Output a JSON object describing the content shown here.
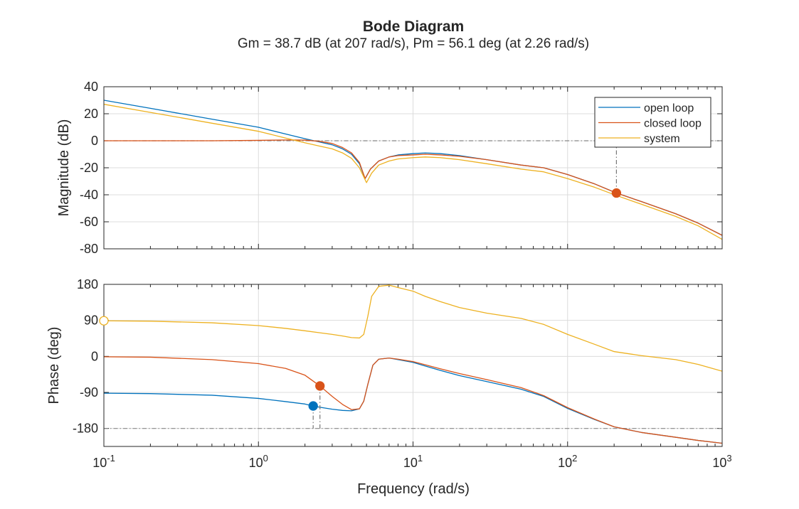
{
  "chart_data": {
    "type": "line",
    "title": "Bode Diagram",
    "subtitle": "Gm = 38.7 dB (at 207 rad/s),  Pm = 56.1 deg (at 2.26 rad/s)",
    "xlabel": "Frequency (rad/s)",
    "xscale": "log",
    "xlim": [
      0.1,
      1000
    ],
    "x_tick_labels": [
      {
        "base": "10",
        "exp": "-1",
        "value": 0.1
      },
      {
        "base": "10",
        "exp": "0",
        "value": 1
      },
      {
        "base": "10",
        "exp": "1",
        "value": 10
      },
      {
        "base": "10",
        "exp": "2",
        "value": 100
      },
      {
        "base": "10",
        "exp": "3",
        "value": 1000
      }
    ],
    "magnitude": {
      "ylabel": "Magnitude (dB)",
      "ylim": [
        -80,
        40
      ],
      "yticks": [
        40,
        20,
        0,
        -20,
        -40,
        -60,
        -80
      ],
      "yticklabels": [
        "40",
        "20",
        "0",
        "-20",
        "-40",
        "-60",
        "-80"
      ],
      "reference_line": 0,
      "series": [
        {
          "name": "open loop",
          "color": "#0072BD",
          "points": [
            [
              0.1,
              30
            ],
            [
              0.2,
              24
            ],
            [
              0.5,
              16
            ],
            [
              1,
              10
            ],
            [
              1.5,
              5
            ],
            [
              2,
              1.5
            ],
            [
              2.5,
              -1
            ],
            [
              3,
              -3
            ],
            [
              3.5,
              -6
            ],
            [
              4,
              -10
            ],
            [
              4.5,
              -17
            ],
            [
              4.9,
              -28
            ],
            [
              5.3,
              -21
            ],
            [
              6,
              -15
            ],
            [
              7,
              -12
            ],
            [
              8,
              -10.5
            ],
            [
              10,
              -9.5
            ],
            [
              12,
              -9
            ],
            [
              15,
              -9.5
            ],
            [
              20,
              -11
            ],
            [
              30,
              -14
            ],
            [
              50,
              -18
            ],
            [
              70,
              -20
            ],
            [
              100,
              -25
            ],
            [
              150,
              -32
            ],
            [
              207,
              -38.7
            ],
            [
              300,
              -45
            ],
            [
              500,
              -54
            ],
            [
              700,
              -61
            ],
            [
              1000,
              -70
            ]
          ]
        },
        {
          "name": "closed loop",
          "color": "#D95319",
          "points": [
            [
              0.1,
              0
            ],
            [
              0.5,
              0
            ],
            [
              1,
              0.3
            ],
            [
              1.5,
              0.6
            ],
            [
              2,
              0.5
            ],
            [
              2.5,
              -0.5
            ],
            [
              3,
              -2
            ],
            [
              3.5,
              -5
            ],
            [
              4,
              -9
            ],
            [
              4.5,
              -16
            ],
            [
              4.9,
              -28
            ],
            [
              5.3,
              -21
            ],
            [
              6,
              -15
            ],
            [
              7,
              -12
            ],
            [
              8,
              -11
            ],
            [
              10,
              -10.5
            ],
            [
              12,
              -10
            ],
            [
              15,
              -10.5
            ],
            [
              20,
              -11.5
            ],
            [
              30,
              -14
            ],
            [
              50,
              -18
            ],
            [
              70,
              -20
            ],
            [
              100,
              -25
            ],
            [
              150,
              -32
            ],
            [
              207,
              -38.7
            ],
            [
              300,
              -45
            ],
            [
              500,
              -54
            ],
            [
              700,
              -61
            ],
            [
              1000,
              -70
            ]
          ]
        },
        {
          "name": "system",
          "color": "#EDB120",
          "points": [
            [
              0.1,
              27
            ],
            [
              0.2,
              21
            ],
            [
              0.5,
              13
            ],
            [
              1,
              7
            ],
            [
              1.5,
              2
            ],
            [
              2,
              -1.5
            ],
            [
              2.5,
              -4
            ],
            [
              3,
              -6
            ],
            [
              3.5,
              -9
            ],
            [
              4,
              -13
            ],
            [
              4.5,
              -20
            ],
            [
              5,
              -31
            ],
            [
              5.4,
              -24
            ],
            [
              6,
              -18
            ],
            [
              7,
              -15
            ],
            [
              8,
              -13.5
            ],
            [
              10,
              -12.5
            ],
            [
              12,
              -12
            ],
            [
              15,
              -12.5
            ],
            [
              20,
              -14
            ],
            [
              30,
              -17
            ],
            [
              50,
              -21
            ],
            [
              70,
              -23
            ],
            [
              100,
              -28
            ],
            [
              150,
              -34.5
            ],
            [
              207,
              -40.5
            ],
            [
              300,
              -47
            ],
            [
              500,
              -56
            ],
            [
              700,
              -63
            ],
            [
              1000,
              -73
            ]
          ]
        }
      ],
      "markers": [
        {
          "series": "closed loop",
          "x": 207,
          "y": -38.7,
          "color": "#D95319",
          "style": "filled",
          "drop_to": 0
        }
      ],
      "legend": {
        "position": "top-right",
        "entries": [
          "open loop",
          "closed loop",
          "system"
        ]
      }
    },
    "phase": {
      "ylabel": "Phase (deg)",
      "ylim": [
        -225,
        180
      ],
      "yticks": [
        180,
        90,
        0,
        -90,
        -180
      ],
      "yticklabels": [
        "180",
        "90",
        "0",
        "-90",
        "-180"
      ],
      "reference_line": -180,
      "series": [
        {
          "name": "open loop",
          "color": "#0072BD",
          "points": [
            [
              0.1,
              -92
            ],
            [
              0.2,
              -93
            ],
            [
              0.5,
              -97
            ],
            [
              1,
              -105
            ],
            [
              1.5,
              -113
            ],
            [
              2,
              -119
            ],
            [
              2.26,
              -123.9
            ],
            [
              2.5,
              -127
            ],
            [
              3,
              -132
            ],
            [
              3.5,
              -135
            ],
            [
              4,
              -136
            ],
            [
              4.5,
              -131
            ],
            [
              4.8,
              -112
            ],
            [
              5.1,
              -70
            ],
            [
              5.5,
              -22
            ],
            [
              6,
              -7
            ],
            [
              7,
              -4
            ],
            [
              8,
              -8
            ],
            [
              10,
              -15
            ],
            [
              12,
              -24
            ],
            [
              15,
              -35
            ],
            [
              20,
              -48
            ],
            [
              30,
              -63
            ],
            [
              50,
              -82
            ],
            [
              70,
              -100
            ],
            [
              100,
              -130
            ],
            [
              150,
              -158
            ],
            [
              200,
              -176
            ],
            [
              300,
              -190
            ],
            [
              500,
              -202
            ],
            [
              700,
              -210
            ],
            [
              1000,
              -217
            ]
          ]
        },
        {
          "name": "closed loop",
          "color": "#D95319",
          "points": [
            [
              0.1,
              -1
            ],
            [
              0.2,
              -2
            ],
            [
              0.5,
              -8
            ],
            [
              1,
              -18
            ],
            [
              1.5,
              -30
            ],
            [
              2,
              -47
            ],
            [
              2.5,
              -73.9
            ],
            [
              3,
              -100
            ],
            [
              3.5,
              -120
            ],
            [
              4,
              -133
            ],
            [
              4.5,
              -131
            ],
            [
              4.8,
              -112
            ],
            [
              5.1,
              -70
            ],
            [
              5.5,
              -22
            ],
            [
              6,
              -7
            ],
            [
              7,
              -4
            ],
            [
              8,
              -7
            ],
            [
              10,
              -13
            ],
            [
              12,
              -21
            ],
            [
              15,
              -31
            ],
            [
              20,
              -43
            ],
            [
              30,
              -58
            ],
            [
              50,
              -78
            ],
            [
              70,
              -98
            ],
            [
              100,
              -128
            ],
            [
              150,
              -157
            ],
            [
              200,
              -176
            ],
            [
              300,
              -190
            ],
            [
              500,
              -202
            ],
            [
              700,
              -210
            ],
            [
              1000,
              -217
            ]
          ]
        },
        {
          "name": "system",
          "color": "#EDB120",
          "points": [
            [
              0.1,
              89
            ],
            [
              0.2,
              88
            ],
            [
              0.5,
              84
            ],
            [
              1,
              77
            ],
            [
              1.5,
              70
            ],
            [
              2,
              64
            ],
            [
              2.5,
              59
            ],
            [
              3,
              55
            ],
            [
              3.5,
              51
            ],
            [
              4,
              47
            ],
            [
              4.5,
              46
            ],
            [
              4.8,
              55
            ],
            [
              5.1,
              100
            ],
            [
              5.4,
              150
            ],
            [
              6,
              175
            ],
            [
              7,
              178
            ],
            [
              8,
              172
            ],
            [
              10,
              163
            ],
            [
              12,
              150
            ],
            [
              15,
              137
            ],
            [
              20,
              122
            ],
            [
              30,
              108
            ],
            [
              50,
              95
            ],
            [
              70,
              80
            ],
            [
              100,
              55
            ],
            [
              150,
              30
            ],
            [
              200,
              12
            ],
            [
              300,
              2
            ],
            [
              500,
              -8
            ],
            [
              700,
              -20
            ],
            [
              1000,
              -37
            ]
          ]
        }
      ],
      "markers": [
        {
          "series": "open loop",
          "x": 2.26,
          "y": -123.9,
          "color": "#0072BD",
          "style": "filled",
          "drop_to": -180
        },
        {
          "series": "closed loop",
          "x": 2.5,
          "y": -73.9,
          "color": "#D95319",
          "style": "filled",
          "drop_to": -180
        },
        {
          "series": "system",
          "x": 0.1,
          "y": 89,
          "color": "#EDB120",
          "style": "open"
        }
      ]
    },
    "grid": true
  }
}
